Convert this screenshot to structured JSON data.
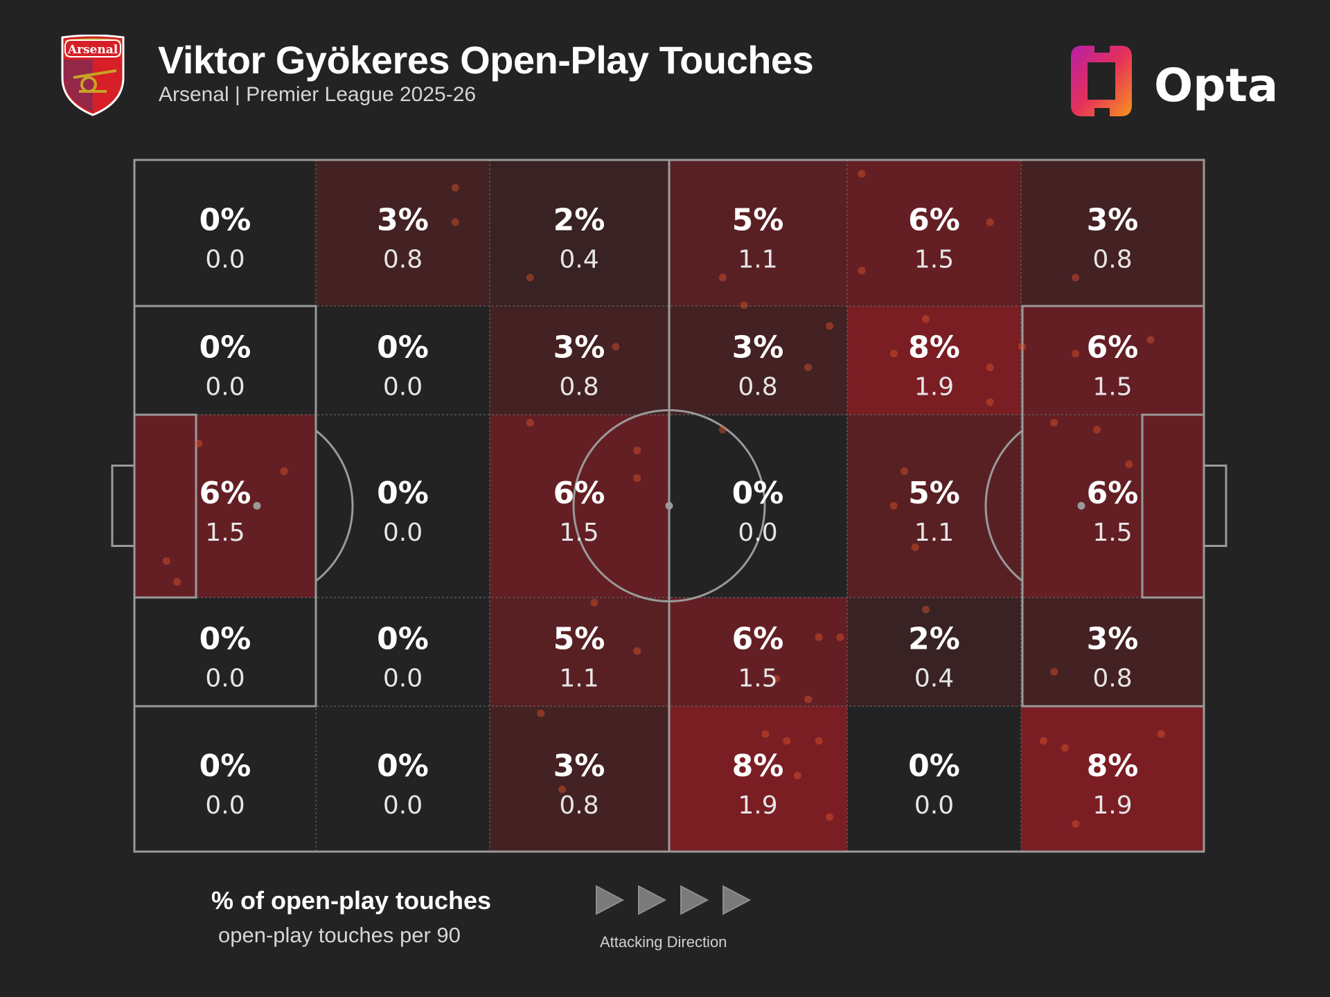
{
  "header": {
    "title": "Viktor Gyökeres Open-Play Touches",
    "subtitle": "Arsenal | Premier League 2025-26",
    "club_crest_text": "Arsenal",
    "brand": "Opta"
  },
  "legend": {
    "primary": "% of open-play touches",
    "secondary": "open-play touches per 90",
    "direction_label": "Attacking Direction"
  },
  "colors": {
    "background": "#232323",
    "heat_max": "#7a1e24",
    "pitch_lines": "#9a9a9a",
    "touch_dots": "#e0542a"
  },
  "chart_data": {
    "type": "heatmap",
    "title": "Viktor Gyökeres Open-Play Touches",
    "subtitle": "Arsenal | Premier League 2025-26",
    "columns": 6,
    "rows": 5,
    "attacking_direction": "left-to-right",
    "cells": [
      [
        {
          "pct": "0%",
          "per90": "0.0",
          "value": 0
        },
        {
          "pct": "3%",
          "per90": "0.8",
          "value": 3
        },
        {
          "pct": "2%",
          "per90": "0.4",
          "value": 2
        },
        {
          "pct": "5%",
          "per90": "1.1",
          "value": 5
        },
        {
          "pct": "6%",
          "per90": "1.5",
          "value": 6
        },
        {
          "pct": "3%",
          "per90": "0.8",
          "value": 3
        }
      ],
      [
        {
          "pct": "0%",
          "per90": "0.0",
          "value": 0
        },
        {
          "pct": "0%",
          "per90": "0.0",
          "value": 0
        },
        {
          "pct": "3%",
          "per90": "0.8",
          "value": 3
        },
        {
          "pct": "3%",
          "per90": "0.8",
          "value": 3
        },
        {
          "pct": "8%",
          "per90": "1.9",
          "value": 8
        },
        {
          "pct": "6%",
          "per90": "1.5",
          "value": 6
        }
      ],
      [
        {
          "pct": "6%",
          "per90": "1.5",
          "value": 6
        },
        {
          "pct": "0%",
          "per90": "0.0",
          "value": 0
        },
        {
          "pct": "6%",
          "per90": "1.5",
          "value": 6
        },
        {
          "pct": "0%",
          "per90": "0.0",
          "value": 0
        },
        {
          "pct": "5%",
          "per90": "1.1",
          "value": 5
        },
        {
          "pct": "6%",
          "per90": "1.5",
          "value": 6
        }
      ],
      [
        {
          "pct": "0%",
          "per90": "0.0",
          "value": 0
        },
        {
          "pct": "0%",
          "per90": "0.0",
          "value": 0
        },
        {
          "pct": "5%",
          "per90": "1.1",
          "value": 5
        },
        {
          "pct": "6%",
          "per90": "1.5",
          "value": 6
        },
        {
          "pct": "2%",
          "per90": "0.4",
          "value": 2
        },
        {
          "pct": "3%",
          "per90": "0.8",
          "value": 3
        }
      ],
      [
        {
          "pct": "0%",
          "per90": "0.0",
          "value": 0
        },
        {
          "pct": "0%",
          "per90": "0.0",
          "value": 0
        },
        {
          "pct": "3%",
          "per90": "0.8",
          "value": 3
        },
        {
          "pct": "8%",
          "per90": "1.9",
          "value": 8
        },
        {
          "pct": "0%",
          "per90": "0.0",
          "value": 0
        },
        {
          "pct": "8%",
          "per90": "1.9",
          "value": 8
        }
      ]
    ],
    "touches": [
      [
        0.3,
        0.04
      ],
      [
        0.3,
        0.09
      ],
      [
        0.37,
        0.17
      ],
      [
        0.55,
        0.17
      ],
      [
        0.57,
        0.21
      ],
      [
        0.68,
        0.02
      ],
      [
        0.68,
        0.16
      ],
      [
        0.8,
        0.09
      ],
      [
        0.88,
        0.17
      ],
      [
        0.55,
        0.39
      ],
      [
        0.45,
        0.27
      ],
      [
        0.63,
        0.3
      ],
      [
        0.65,
        0.24
      ],
      [
        0.71,
        0.28
      ],
      [
        0.74,
        0.23
      ],
      [
        0.8,
        0.35
      ],
      [
        0.8,
        0.3
      ],
      [
        0.83,
        0.27
      ],
      [
        0.88,
        0.28
      ],
      [
        0.95,
        0.26
      ],
      [
        0.06,
        0.41
      ],
      [
        0.14,
        0.45
      ],
      [
        0.03,
        0.58
      ],
      [
        0.04,
        0.61
      ],
      [
        0.37,
        0.38
      ],
      [
        0.47,
        0.42
      ],
      [
        0.47,
        0.46
      ],
      [
        0.71,
        0.5
      ],
      [
        0.72,
        0.45
      ],
      [
        0.73,
        0.56
      ],
      [
        0.86,
        0.38
      ],
      [
        0.9,
        0.39
      ],
      [
        0.93,
        0.44
      ],
      [
        0.43,
        0.64
      ],
      [
        0.47,
        0.71
      ],
      [
        0.38,
        0.8
      ],
      [
        0.64,
        0.69
      ],
      [
        0.66,
        0.69
      ],
      [
        0.6,
        0.75
      ],
      [
        0.63,
        0.78
      ],
      [
        0.74,
        0.65
      ],
      [
        0.86,
        0.74
      ],
      [
        0.59,
        0.83
      ],
      [
        0.61,
        0.84
      ],
      [
        0.64,
        0.84
      ],
      [
        0.62,
        0.89
      ],
      [
        0.65,
        0.95
      ],
      [
        0.4,
        0.91
      ],
      [
        0.85,
        0.84
      ],
      [
        0.87,
        0.85
      ],
      [
        0.96,
        0.83
      ],
      [
        0.88,
        0.96
      ]
    ]
  }
}
